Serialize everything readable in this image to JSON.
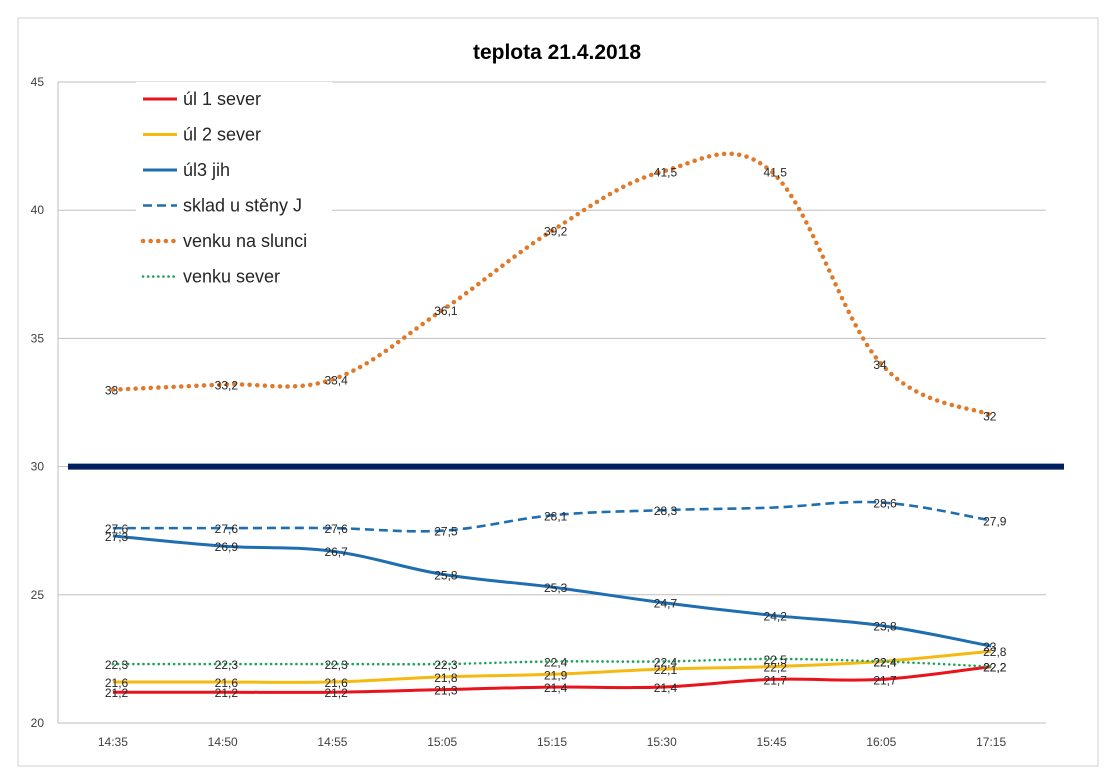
{
  "chart_data": {
    "type": "line",
    "title": "teplota 21.4.2018",
    "xlabel": "",
    "ylabel": "",
    "categories": [
      "14:35",
      "14:50",
      "14:55",
      "15:05",
      "15:15",
      "15:30",
      "15:45",
      "16:05",
      "17:15"
    ],
    "ylim": [
      20,
      45
    ],
    "yticks": [
      20,
      25,
      30,
      35,
      40,
      45
    ],
    "grid": true,
    "legend_position": "top-left",
    "reference_line": {
      "value": 30,
      "color": "#002060"
    },
    "series": [
      {
        "name": "úl 1 sever",
        "color": "#e8131b",
        "style": "solid",
        "values": [
          21.2,
          21.2,
          21.2,
          21.3,
          21.4,
          21.4,
          21.7,
          21.7,
          22.2
        ],
        "labels": [
          "21,2",
          "21,2",
          "21,2",
          "21,3",
          "21,4",
          "21,4",
          "21,7",
          "21,7",
          "22,2"
        ]
      },
      {
        "name": "úl 2 sever",
        "color": "#f5b911",
        "style": "solid",
        "values": [
          21.6,
          21.6,
          21.6,
          21.8,
          21.9,
          22.1,
          22.2,
          22.4,
          22.8
        ],
        "labels": [
          "21,6",
          "21,6",
          "21,6",
          "21,8",
          "21,9",
          "22,1",
          "22,2",
          "22,4",
          "22,8"
        ]
      },
      {
        "name": "úl3 jih",
        "color": "#1f6eb0",
        "style": "solid",
        "values": [
          27.3,
          26.9,
          26.7,
          25.8,
          25.3,
          24.7,
          24.2,
          23.8,
          23
        ],
        "labels": [
          "27,3",
          "26,9",
          "26,7",
          "25,8",
          "25,3",
          "24,7",
          "24,2",
          "23,8",
          "23"
        ]
      },
      {
        "name": "sklad u stěny J",
        "color": "#1f6eb0",
        "style": "dashed",
        "values": [
          27.6,
          27.6,
          27.6,
          27.5,
          28.1,
          28.3,
          28.4,
          28.6,
          27.9
        ],
        "labels": [
          "27,6",
          "27,6",
          "27,6",
          "27,5",
          "28,1",
          "28,3",
          "",
          "28,6",
          "27,9"
        ]
      },
      {
        "name": "venku na slunci",
        "color": "#e07a2a",
        "style": "dotted",
        "values": [
          33,
          33.2,
          33.4,
          36.1,
          39.2,
          41.5,
          41.5,
          34,
          32
        ],
        "labels": [
          "33",
          "33,2",
          "33,4",
          "36,1",
          "39,2",
          "41,5",
          "41,5",
          "34",
          "32"
        ]
      },
      {
        "name": "venku sever",
        "color": "#1fa35a",
        "style": "dotted-fine",
        "values": [
          22.3,
          22.3,
          22.3,
          22.3,
          22.4,
          22.4,
          22.5,
          22.4,
          22.2
        ],
        "labels": [
          "22,3",
          "22,3",
          "22,3",
          "22,3",
          "22,4",
          "22,4",
          "22,5",
          "22,4",
          "22,2"
        ]
      }
    ]
  }
}
